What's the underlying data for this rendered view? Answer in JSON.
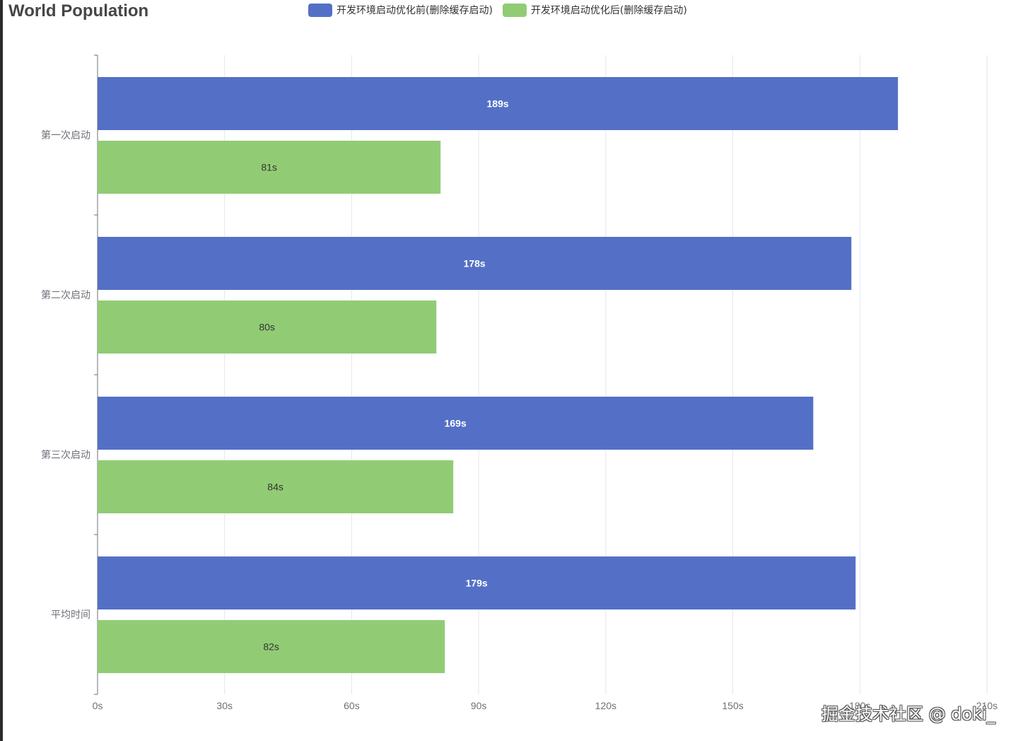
{
  "chart_data": {
    "type": "bar",
    "orientation": "horizontal",
    "title": "World Population",
    "categories": [
      "第一次启动",
      "第二次启动",
      "第三次启动",
      "平均时间"
    ],
    "series": [
      {
        "name": "开发环境启动优化前(删除缓存启动)",
        "color": "#5470c6",
        "values": [
          189,
          178,
          169,
          179
        ],
        "labels": [
          "189s",
          "178s",
          "169s",
          "179s"
        ]
      },
      {
        "name": "开发环境启动优化后(删除缓存启动)",
        "color": "#91cc75",
        "values": [
          81,
          80,
          84,
          82
        ],
        "labels": [
          "81s",
          "80s",
          "84s",
          "82s"
        ]
      }
    ],
    "xaxis": {
      "min": 0,
      "max": 210,
      "ticks": [
        0,
        30,
        60,
        90,
        120,
        150,
        180,
        210
      ],
      "tick_labels": [
        "0s",
        "30s",
        "60s",
        "90s",
        "120s",
        "150s",
        "180s",
        "210s"
      ]
    },
    "grid": true,
    "legend_position": "top"
  },
  "watermark": "掘金技术社区 @ doki_"
}
